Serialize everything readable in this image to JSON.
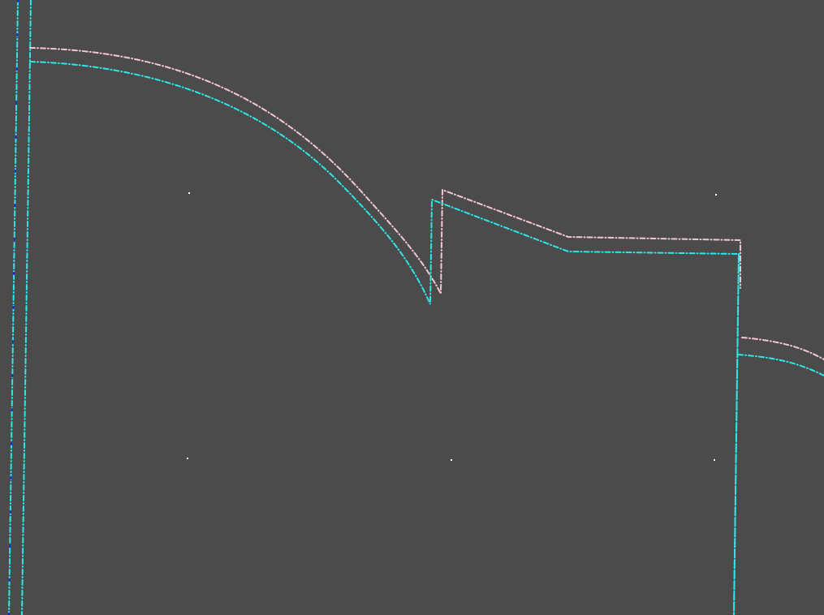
{
  "canvas": {
    "background": "#4b4b4b"
  },
  "colors": {
    "pink": "#f5c6cf",
    "cyan": "#2ee6e6",
    "blue": "#2020d8",
    "dot": "#ffffff"
  },
  "traces": [
    {
      "id": "left-cyan-vertical-1",
      "color": "cyan"
    },
    {
      "id": "left-cyan-vertical-2",
      "color": "cyan"
    },
    {
      "id": "left-blue-vertical",
      "color": "blue"
    },
    {
      "id": "pink-path-1",
      "color": "pink"
    },
    {
      "id": "cyan-path-1",
      "color": "cyan"
    },
    {
      "id": "right-cyan-vertical",
      "color": "cyan"
    },
    {
      "id": "pink-path-2",
      "color": "pink"
    },
    {
      "id": "cyan-path-2",
      "color": "cyan"
    }
  ],
  "markers": [
    {
      "id": "reference-dot-1"
    },
    {
      "id": "reference-dot-2"
    },
    {
      "id": "reference-dot-3"
    },
    {
      "id": "reference-dot-4"
    },
    {
      "id": "reference-dot-5"
    }
  ]
}
